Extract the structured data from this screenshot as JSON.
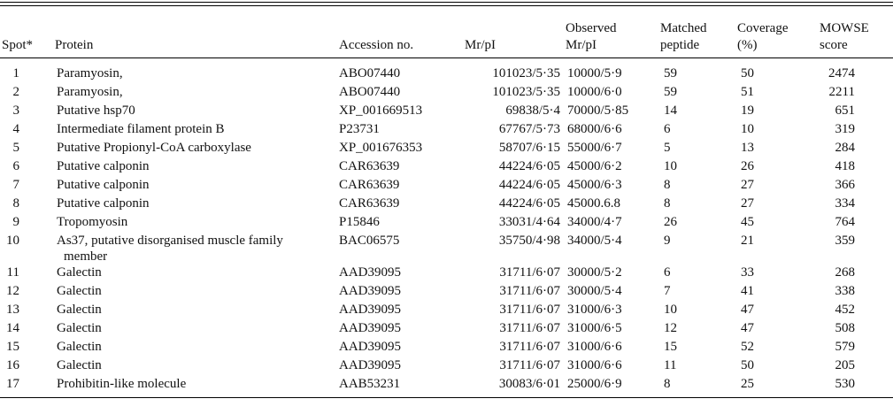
{
  "table": {
    "header": [
      [
        "Spot*"
      ],
      [
        "Protein"
      ],
      [
        "Accession no."
      ],
      [
        "Mr/pI"
      ],
      [
        "Observed",
        "Mr/pI"
      ],
      [
        "Matched",
        "peptide"
      ],
      [
        "Coverage",
        "(%)"
      ],
      [
        "MOWSE",
        "score"
      ]
    ],
    "rows": [
      [
        "1",
        "Paramyosin,",
        "ABO07440",
        "101023/5·35",
        "10000/5·9",
        "59",
        "50",
        "2474"
      ],
      [
        "2",
        "Paramyosin,",
        "ABO07440",
        "101023/5·35",
        "10000/6·0",
        "59",
        "51",
        "2211"
      ],
      [
        "3",
        "Putative hsp70",
        "XP_001669513",
        "69838/5·4",
        "70000/5·85",
        "14",
        "19",
        "651"
      ],
      [
        "4",
        "Intermediate filament protein B",
        "P23731",
        "67767/5·73",
        "68000/6·6",
        "6",
        "10",
        "319"
      ],
      [
        "5",
        "Putative Propionyl-CoA carboxylase",
        "XP_001676353",
        "58707/6·15",
        "55000/6·7",
        "5",
        "13",
        "284"
      ],
      [
        "6",
        "Putative calponin",
        "CAR63639",
        "44224/6·05",
        "45000/6·2",
        "10",
        "26",
        "418"
      ],
      [
        "7",
        "Putative calponin",
        "CAR63639",
        "44224/6·05",
        "45000/6·3",
        "8",
        "27",
        "366"
      ],
      [
        "8",
        "Putative calponin",
        "CAR63639",
        "44224/6·05",
        "45000.6.8",
        "8",
        "27",
        "334"
      ],
      [
        "9",
        "Tropomyosin",
        "P15846",
        "33031/4·64",
        "34000/4·7",
        "26",
        "45",
        "764"
      ],
      [
        "10",
        "As37, putative disorganised muscle family member",
        "BAC06575",
        "35750/4·98",
        "34000/5·4",
        "9",
        "21",
        "359"
      ],
      [
        "11",
        "Galectin",
        "AAD39095",
        "31711/6·07",
        "30000/5·2",
        "6",
        "33",
        "268"
      ],
      [
        "12",
        "Galectin",
        "AAD39095",
        "31711/6·07",
        "30000/5·4",
        "7",
        "41",
        "338"
      ],
      [
        "13",
        "Galectin",
        "AAD39095",
        "31711/6·07",
        "31000/6·3",
        "10",
        "47",
        "452"
      ],
      [
        "14",
        "Galectin",
        "AAD39095",
        "31711/6·07",
        "31000/6·5",
        "12",
        "47",
        "508"
      ],
      [
        "15",
        "Galectin",
        "AAD39095",
        "31711/6·07",
        "31000/6·6",
        "15",
        "52",
        "579"
      ],
      [
        "16",
        "Galectin",
        "AAD39095",
        "31711/6·07",
        "31000/6·6",
        "11",
        "50",
        "205"
      ],
      [
        "17",
        "Prohibitin-like molecule",
        "AAB53231",
        "30083/6·01",
        "25000/6·9",
        "8",
        "25",
        "530"
      ]
    ]
  }
}
